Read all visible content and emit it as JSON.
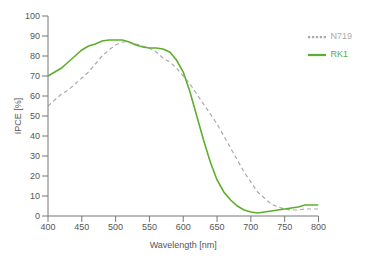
{
  "chart_data": {
    "type": "line",
    "x_label": "Wavelength [nm]",
    "y_label": "IPCE [%]",
    "x": [
      400,
      410,
      420,
      430,
      440,
      450,
      460,
      470,
      480,
      490,
      500,
      510,
      520,
      530,
      540,
      550,
      560,
      570,
      580,
      590,
      600,
      610,
      620,
      630,
      640,
      650,
      660,
      670,
      680,
      690,
      700,
      710,
      720,
      730,
      740,
      750,
      760,
      770,
      780,
      790,
      800
    ],
    "series": [
      {
        "name": "N719",
        "color": "#aaaaaa",
        "line_style": "dashed",
        "values": [
          55,
          58,
          61,
          63,
          66,
          69,
          72,
          76,
          80,
          83,
          85.5,
          87,
          87,
          86,
          85,
          84,
          82,
          79,
          77,
          74,
          70,
          66,
          61,
          56,
          51,
          46,
          40,
          34,
          28,
          22,
          17,
          12,
          9,
          6,
          4.5,
          3.5,
          3,
          3,
          3.5,
          3.5,
          3.5
        ]
      },
      {
        "name": "RK1",
        "color": "#5fae2e",
        "line_style": "solid",
        "values": [
          70,
          72,
          74,
          77,
          80,
          83,
          85,
          86,
          87.5,
          88,
          88,
          88,
          87,
          85.5,
          84.5,
          84,
          84,
          83.5,
          82,
          78,
          72,
          62,
          50,
          38,
          27,
          18,
          12,
          8,
          5,
          3,
          2,
          1.5,
          2,
          2.5,
          3,
          3.5,
          4,
          4.5,
          5.5,
          5.5,
          5.5
        ]
      }
    ],
    "xlim": [
      400,
      800
    ],
    "xticks": [
      400,
      450,
      500,
      550,
      600,
      650,
      700,
      750,
      800
    ],
    "ylim": [
      0,
      100
    ],
    "yticks": [
      0,
      10,
      20,
      30,
      40,
      50,
      60,
      70,
      80,
      90,
      100
    ],
    "legend": "upper right",
    "grid": false
  }
}
